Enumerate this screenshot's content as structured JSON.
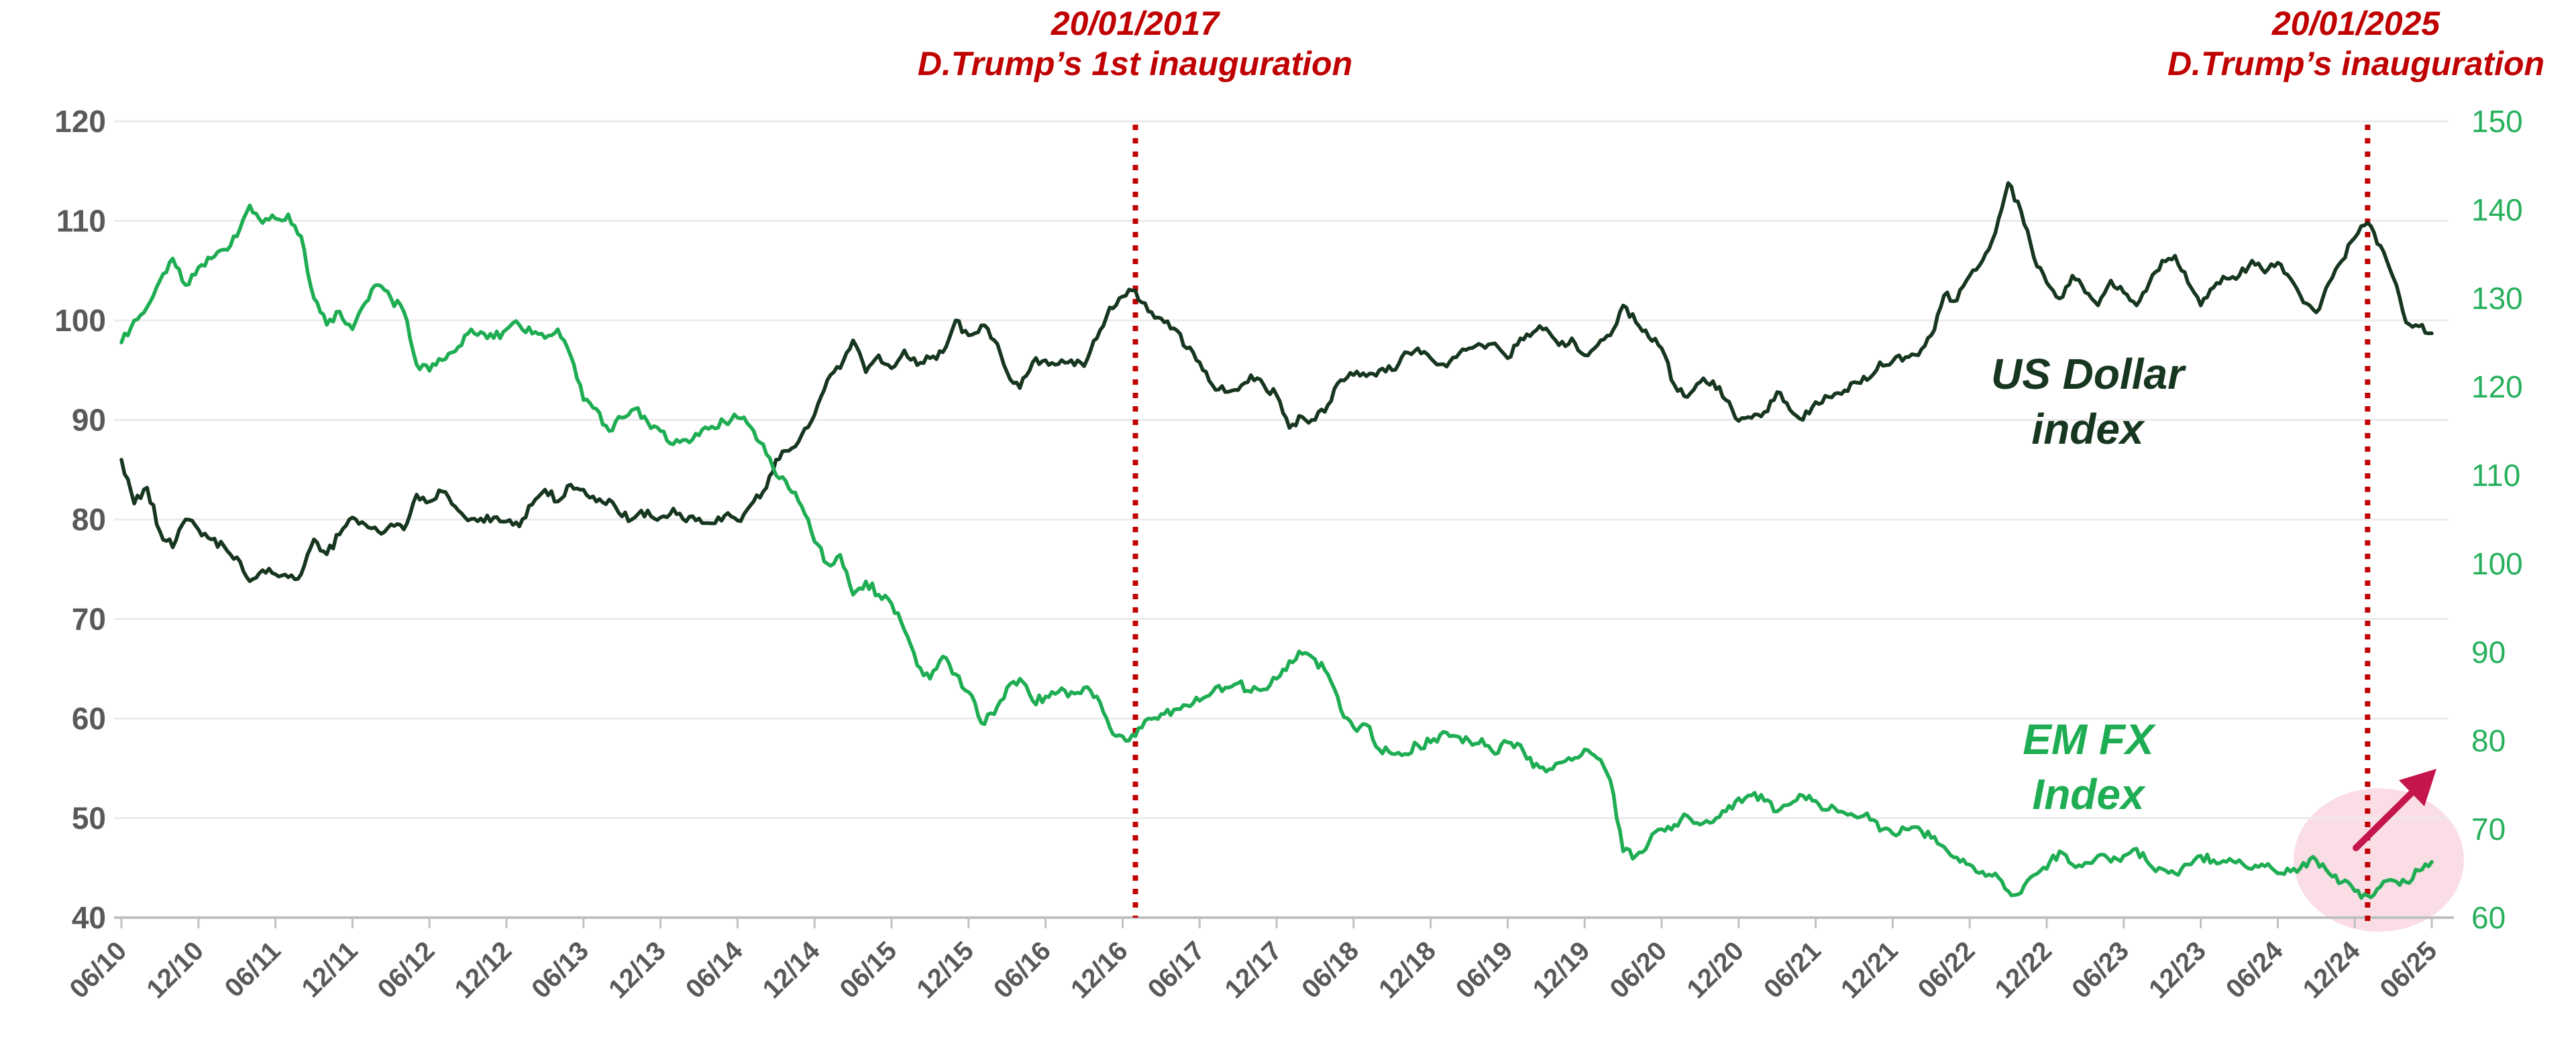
{
  "chart_data": {
    "type": "line",
    "title": "",
    "start_month": "06/2010",
    "end_month": "06/2025",
    "frequency": "monthly",
    "grid": "horizontal-only",
    "x_tick_labels": [
      "06/10",
      "12/10",
      "06/11",
      "12/11",
      "06/12",
      "12/12",
      "06/13",
      "12/13",
      "06/14",
      "12/14",
      "06/15",
      "12/15",
      "06/16",
      "12/16",
      "06/17",
      "12/17",
      "06/18",
      "12/18",
      "06/19",
      "12/19",
      "06/20",
      "12/20",
      "06/21",
      "12/21",
      "06/22",
      "12/22",
      "06/23",
      "12/23",
      "06/24",
      "12/24",
      "06/25"
    ],
    "left_axis": {
      "min": 40,
      "max": 120,
      "ticks": [
        120,
        110,
        100,
        90,
        80,
        70,
        60,
        50,
        40
      ],
      "color": "#595959",
      "series": "US Dollar index"
    },
    "right_axis": {
      "min": 60,
      "max": 150,
      "ticks": [
        150,
        140,
        130,
        120,
        110,
        100,
        90,
        80,
        70,
        60
      ],
      "color": "#27b05c",
      "series": "EM FX Index"
    },
    "series": [
      {
        "name": "US Dollar index",
        "label_lines": [
          "US Dollar",
          "index"
        ],
        "axis": "left",
        "color": "#17361f",
        "monthly_values": [
          86.0,
          81.6,
          83.2,
          78.8,
          77.2,
          80.0,
          79.0,
          78.0,
          77.3,
          76.2,
          73.8,
          74.9,
          74.5,
          74.2,
          74.5,
          78.0,
          76.5,
          78.5,
          80.2,
          79.5,
          78.8,
          79.5,
          79.0,
          82.5,
          81.8,
          82.8,
          81.3,
          79.9,
          80.1,
          80.2,
          79.8,
          79.3,
          81.5,
          83.0,
          81.8,
          83.5,
          83.0,
          81.8,
          82.0,
          80.3,
          80.2,
          80.9,
          80.2,
          81.1,
          79.8,
          80.1,
          79.6,
          80.4,
          79.9,
          81.4,
          82.8,
          86.0,
          86.9,
          88.5,
          90.5,
          94.0,
          95.2,
          98.0,
          94.8,
          96.5,
          95.2,
          97.0,
          95.5,
          96.2,
          96.8,
          100.0,
          98.5,
          99.5,
          98.0,
          94.8,
          93.2,
          95.8,
          96.0,
          95.6,
          96.0,
          95.4,
          98.2,
          101.3,
          102.4,
          103.0,
          100.9,
          100.2,
          99.2,
          97.2,
          95.8,
          93.5,
          92.8,
          93.0,
          94.5,
          93.5,
          92.5,
          89.2,
          90.3,
          90.0,
          91.5,
          94.0,
          94.5,
          94.4,
          95.0,
          95.0,
          96.8,
          97.2,
          96.2,
          95.6,
          96.3,
          97.2,
          97.5,
          97.7,
          96.2,
          98.2,
          98.8,
          99.2,
          97.5,
          98.2,
          96.5,
          97.5,
          98.5,
          101.5,
          99.8,
          98.3,
          97.2,
          93.5,
          92.3,
          93.8,
          93.9,
          92.0,
          89.9,
          90.2,
          90.8,
          92.8,
          91.0,
          90.0,
          91.8,
          92.3,
          92.6,
          93.8,
          94.0,
          95.8,
          95.9,
          96.3,
          96.5,
          98.5,
          102.5,
          102.0,
          104.5,
          106.0,
          108.8,
          113.8,
          111.0,
          106.3,
          103.8,
          102.2,
          104.5,
          102.8,
          101.5,
          104.0,
          102.8,
          101.5,
          103.8,
          106.0,
          106.5,
          103.8,
          101.5,
          103.3,
          104.2,
          104.5,
          106.0,
          104.8,
          105.8,
          104.2,
          101.8,
          100.8,
          103.8,
          106.0,
          108.3,
          109.8,
          107.5,
          104.3,
          99.8,
          99.4,
          98.7
        ]
      },
      {
        "name": "EM FX Index",
        "label_lines": [
          "EM FX",
          "Index"
        ],
        "axis": "right",
        "color": "#1fad53",
        "monthly_values": [
          125.0,
          127.5,
          129.0,
          132.0,
          134.5,
          131.5,
          133.5,
          134.5,
          135.5,
          137.0,
          140.5,
          138.5,
          139.0,
          139.5,
          137.0,
          130.0,
          127.0,
          128.5,
          126.5,
          129.5,
          131.5,
          130.0,
          128.5,
          122.5,
          121.8,
          123.0,
          124.0,
          126.0,
          126.2,
          125.5,
          126.5,
          127.0,
          126.0,
          125.5,
          126.5,
          123.5,
          118.5,
          117.5,
          115.0,
          116.5,
          117.5,
          116.0,
          115.0,
          113.5,
          114.0,
          114.5,
          115.5,
          116.0,
          116.5,
          115.5,
          113.5,
          110.0,
          108.5,
          106.5,
          102.5,
          100.0,
          101.0,
          96.5,
          98.0,
          96.5,
          95.5,
          92.5,
          88.5,
          87.0,
          89.5,
          87.5,
          85.5,
          82.0,
          83.0,
          86.0,
          87.0,
          84.5,
          85.0,
          85.5,
          85.5,
          86.0,
          85.0,
          81.5,
          80.5,
          80.5,
          82.5,
          83.0,
          83.5,
          84.0,
          84.5,
          85.5,
          86.0,
          86.5,
          85.5,
          85.8,
          87.0,
          89.0,
          89.8,
          89.2,
          87.5,
          83.5,
          81.5,
          81.8,
          79.0,
          78.5,
          78.5,
          79.5,
          79.8,
          81.0,
          80.5,
          80.0,
          80.2,
          78.5,
          79.8,
          79.5,
          77.0,
          76.5,
          77.5,
          77.8,
          79.0,
          78.0,
          75.5,
          67.5,
          67.0,
          68.5,
          70.0,
          70.5,
          71.5,
          70.5,
          70.8,
          72.0,
          73.5,
          73.8,
          73.2,
          72.0,
          72.8,
          73.8,
          73.2,
          72.2,
          72.0,
          71.5,
          71.8,
          69.8,
          69.5,
          70.0,
          70.2,
          69.0,
          68.0,
          66.8,
          66.0,
          65.2,
          65.0,
          63.0,
          62.8,
          64.8,
          65.5,
          67.5,
          66.0,
          66.2,
          67.0,
          66.3,
          67.0,
          67.8,
          66.0,
          65.5,
          65.0,
          66.0,
          67.0,
          66.5,
          66.3,
          66.5,
          65.5,
          65.8,
          65.0,
          65.2,
          66.2,
          66.5,
          65.0,
          64.0,
          63.0,
          62.5,
          63.5,
          64.2,
          64.0,
          65.3,
          66.3
        ]
      }
    ],
    "annotations": [
      {
        "date": "20/01/2017",
        "label": "D.Trump’s 1st inauguration",
        "month_index": 79,
        "color": "#c00000"
      },
      {
        "date": "20/01/2025",
        "label": "D.Trump’s inauguration",
        "month_index": 175,
        "color": "#c00000"
      }
    ],
    "highlight": {
      "description": "EM FX trough around Jan 2025 with upward rebound arrow",
      "ellipse_color": "#fbdde6",
      "arrow_color": "#c4164c"
    },
    "colors": {
      "grid": "#ebebeb",
      "axis": "#c0c0c0",
      "tick_label_gray": "#595959",
      "right_label_green": "#27b05c",
      "event_line_red": "#c00000"
    }
  }
}
